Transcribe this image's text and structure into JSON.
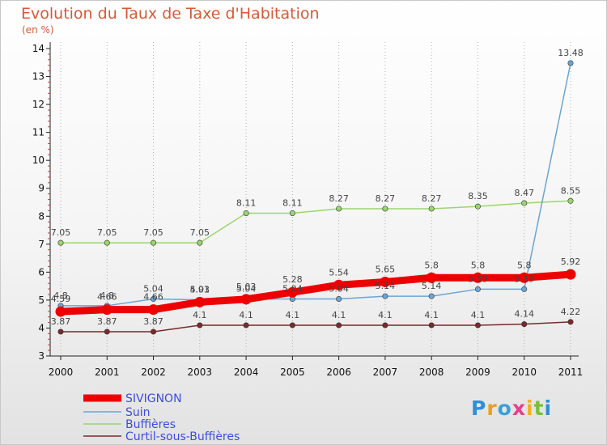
{
  "header": {
    "title": "Evolution du Taux de Taxe d'Habitation",
    "subtitle": "(en %)"
  },
  "logo": {
    "letters": [
      "P",
      "r",
      "o",
      "x",
      "i",
      "t",
      "i"
    ]
  },
  "chart_data": {
    "type": "line",
    "x": [
      2000,
      2001,
      2002,
      2003,
      2004,
      2005,
      2006,
      2007,
      2008,
      2009,
      2010,
      2011
    ],
    "ylim": [
      3,
      14
    ],
    "yticks": [
      3,
      4,
      5,
      6,
      7,
      8,
      9,
      10,
      11,
      12,
      13,
      14
    ],
    "grid": "vertical dotted",
    "legend_position": "bottom-left",
    "series": [
      {
        "name": "SIVIGNON",
        "color": "#ee0000",
        "values": [
          4.59,
          4.66,
          4.66,
          4.93,
          5.03,
          5.28,
          5.54,
          5.65,
          5.8,
          5.8,
          5.8,
          5.92
        ],
        "labels": [
          "4.59",
          "4.66",
          "4.66",
          "4.93",
          "5.03",
          "5.28",
          "5.54",
          "5.65",
          "5.8",
          "5.8",
          "5.8",
          "5.92"
        ]
      },
      {
        "name": "Suin",
        "color": "#6aa5d6",
        "values": [
          4.8,
          4.8,
          5.04,
          5.01,
          5.04,
          5.04,
          5.04,
          5.14,
          5.14,
          5.39,
          5.39,
          13.48
        ],
        "labels": [
          "4.8",
          "4.8",
          "5.04",
          "5.01",
          "5.04",
          "5.04",
          "5.04",
          "5.14",
          "5.14",
          "5.39",
          "5.39",
          "13.48"
        ]
      },
      {
        "name": "Buffières",
        "color": "#9ad66e",
        "values": [
          7.05,
          7.05,
          7.05,
          7.05,
          8.11,
          8.11,
          8.27,
          8.27,
          8.27,
          8.35,
          8.47,
          8.55
        ],
        "labels": [
          "7.05",
          "7.05",
          "7.05",
          "7.05",
          "8.11",
          "8.11",
          "8.27",
          "8.27",
          "8.27",
          "8.35",
          "8.47",
          "8.55"
        ]
      },
      {
        "name": "Curtil-sous-Buffières",
        "color": "#7a2a2a",
        "values": [
          3.87,
          3.87,
          3.87,
          4.1,
          4.1,
          4.1,
          4.1,
          4.1,
          4.1,
          4.1,
          4.14,
          4.22
        ],
        "labels": [
          "3.87",
          "3.87",
          "3.87",
          "4.1",
          "4.1",
          "4.1",
          "4.1",
          "4.1",
          "4.1",
          "4.1",
          "4.14",
          "4.22"
        ]
      }
    ]
  }
}
